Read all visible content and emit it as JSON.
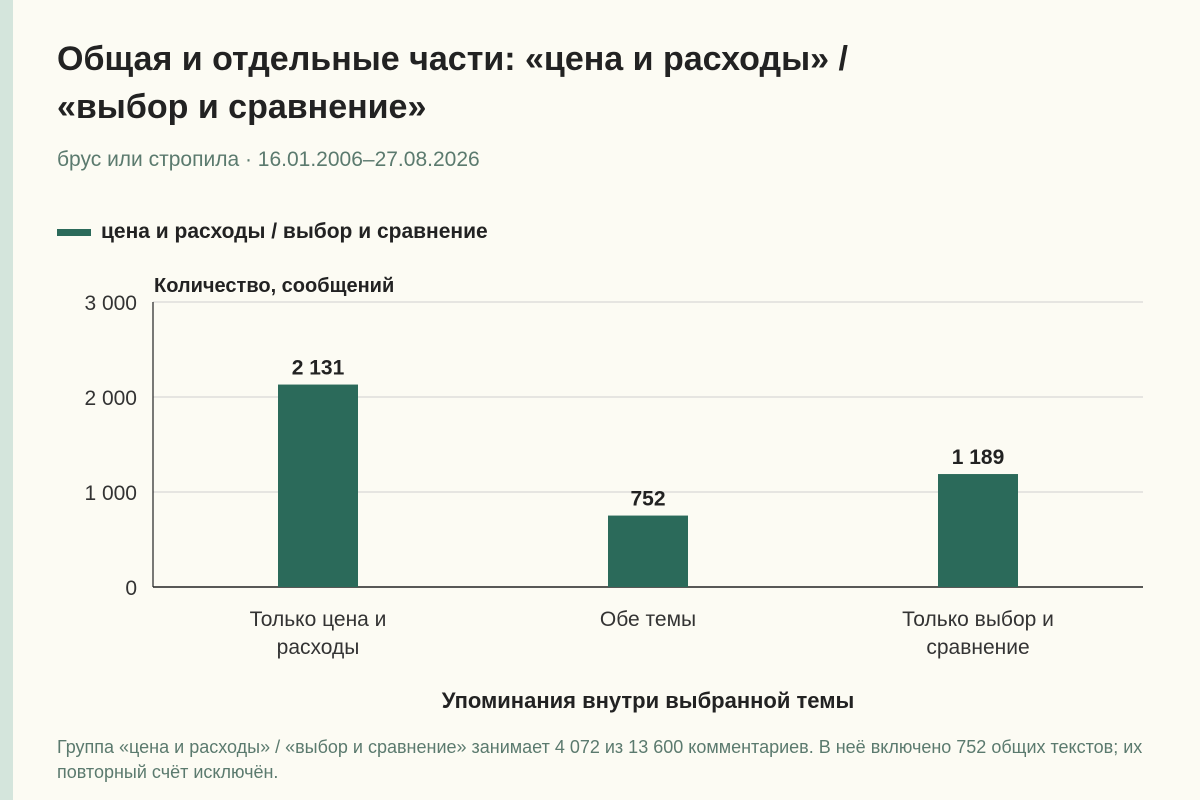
{
  "header": {
    "title_line1": "Общая и отдельные части: «цена и расходы» /",
    "title_line2": "«выбор и сравнение»",
    "subtitle": "брус или стропила · 16.01.2006–27.08.2026"
  },
  "legend": {
    "label": "цена и расходы / выбор и сравнение"
  },
  "colors": {
    "bar": "#2b6a5a",
    "grid": "#cfcfcf",
    "axis": "#222222",
    "accent_strip": "#d4e5dc"
  },
  "chart_data": {
    "type": "bar",
    "categories": [
      "Только цена и расходы",
      "Обе темы",
      "Только выбор и сравнение"
    ],
    "category_lines": [
      [
        "Только цена и расходы"
      ],
      [
        "Обе темы"
      ],
      [
        "Только выбор и",
        "сравнение"
      ]
    ],
    "series": [
      {
        "name": "цена и расходы / выбор и сравнение",
        "values": [
          2131,
          752,
          1189
        ],
        "labels": [
          "2 131",
          "752",
          "1 189"
        ]
      }
    ],
    "ylabel": "Количество, сообщений",
    "xlabel": "Упоминания внутри выбранной темы",
    "ylim": [
      0,
      3000
    ],
    "yticks": [
      0,
      1000,
      2000,
      3000
    ],
    "ytick_labels": [
      "0",
      "1 000",
      "2 000",
      "3 000"
    ],
    "grid": true,
    "legend_position": "top-left"
  },
  "footnote": "Группа «цена и расходы» / «выбор и сравнение» занимает 4 072 из 13 600 комментариев. В неё включено 752 общих текстов; их повторный счёт исключён."
}
